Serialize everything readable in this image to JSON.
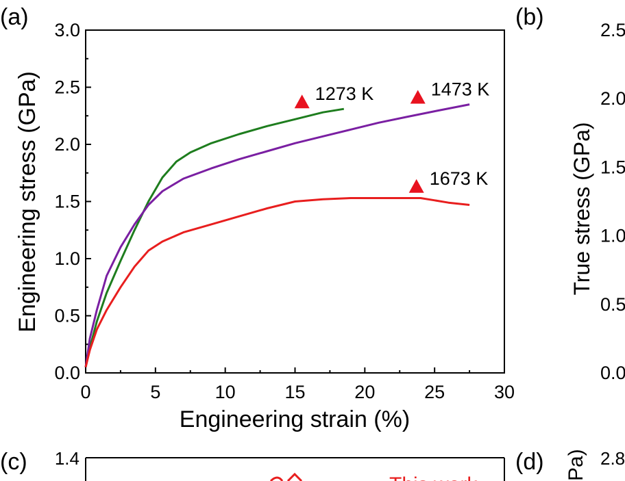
{
  "panels": {
    "a_label": "(a)",
    "b_label": "(b)",
    "c_label": "(c)",
    "d_label": "(d)"
  },
  "chart_data": [
    {
      "panel": "(a)",
      "type": "line",
      "xlabel": "Engineering strain (%)",
      "ylabel": "Engineering stress (GPa)",
      "xlim": [
        0,
        30
      ],
      "ylim": [
        0,
        3.0
      ],
      "xticks": [
        "0",
        "5",
        "10",
        "15",
        "20",
        "25",
        "30"
      ],
      "yticks": [
        "0.0",
        "0.5",
        "1.0",
        "1.5",
        "2.0",
        "2.5",
        "3.0"
      ],
      "grid": false,
      "series": [
        {
          "name": "1273 K",
          "color": "#1e7d1e",
          "x": [
            0,
            0.3,
            0.8,
            1.5,
            2.5,
            3.5,
            4.5,
            5.5,
            6.5,
            7.5,
            9,
            11,
            13,
            15,
            17,
            18.5
          ],
          "y": [
            0.05,
            0.22,
            0.45,
            0.7,
            0.98,
            1.25,
            1.5,
            1.71,
            1.85,
            1.93,
            2.01,
            2.09,
            2.16,
            2.22,
            2.28,
            2.31
          ]
        },
        {
          "name": "1473 K",
          "color": "#7a1fa2",
          "x": [
            0,
            0.3,
            0.8,
            1.5,
            2.5,
            3.5,
            4.5,
            5.5,
            7,
            9,
            11,
            13,
            15,
            17,
            19,
            21,
            23,
            25,
            27.5
          ],
          "y": [
            0.05,
            0.3,
            0.55,
            0.85,
            1.1,
            1.3,
            1.47,
            1.59,
            1.7,
            1.79,
            1.87,
            1.94,
            2.01,
            2.07,
            2.13,
            2.19,
            2.24,
            2.29,
            2.35
          ]
        },
        {
          "name": "1673 K",
          "color": "#e81e1e",
          "x": [
            0,
            0.3,
            0.8,
            1.5,
            2.5,
            3.5,
            4.5,
            5.5,
            7,
            9,
            11,
            13,
            15,
            17,
            19,
            21,
            23,
            24,
            25,
            26,
            27.5
          ],
          "y": [
            0.05,
            0.2,
            0.38,
            0.55,
            0.75,
            0.93,
            1.07,
            1.15,
            1.23,
            1.3,
            1.37,
            1.44,
            1.5,
            1.52,
            1.53,
            1.53,
            1.53,
            1.53,
            1.51,
            1.49,
            1.47
          ]
        }
      ],
      "markers": [
        {
          "x": 15.5,
          "y": 2.37,
          "label": "1273 K"
        },
        {
          "x": 23.8,
          "y": 2.41,
          "label": "1473 K"
        },
        {
          "x": 23.7,
          "y": 1.63,
          "label": "1673 K"
        }
      ],
      "marker_color": "#e8121f"
    },
    {
      "panel": "(b)",
      "type": "line",
      "ylabel": "True stress (GPa)",
      "yticks": [
        "2.5",
        "2.0",
        "1.5",
        "1.0",
        "0.5",
        "0.0"
      ]
    },
    {
      "panel": "(c)",
      "type": "line",
      "yticks": [
        "1.4"
      ],
      "partial_text": "This work"
    },
    {
      "panel": "(d)",
      "type": "line",
      "ylabel_fragment": "Pa)",
      "yticks": [
        "2.8"
      ]
    }
  ]
}
